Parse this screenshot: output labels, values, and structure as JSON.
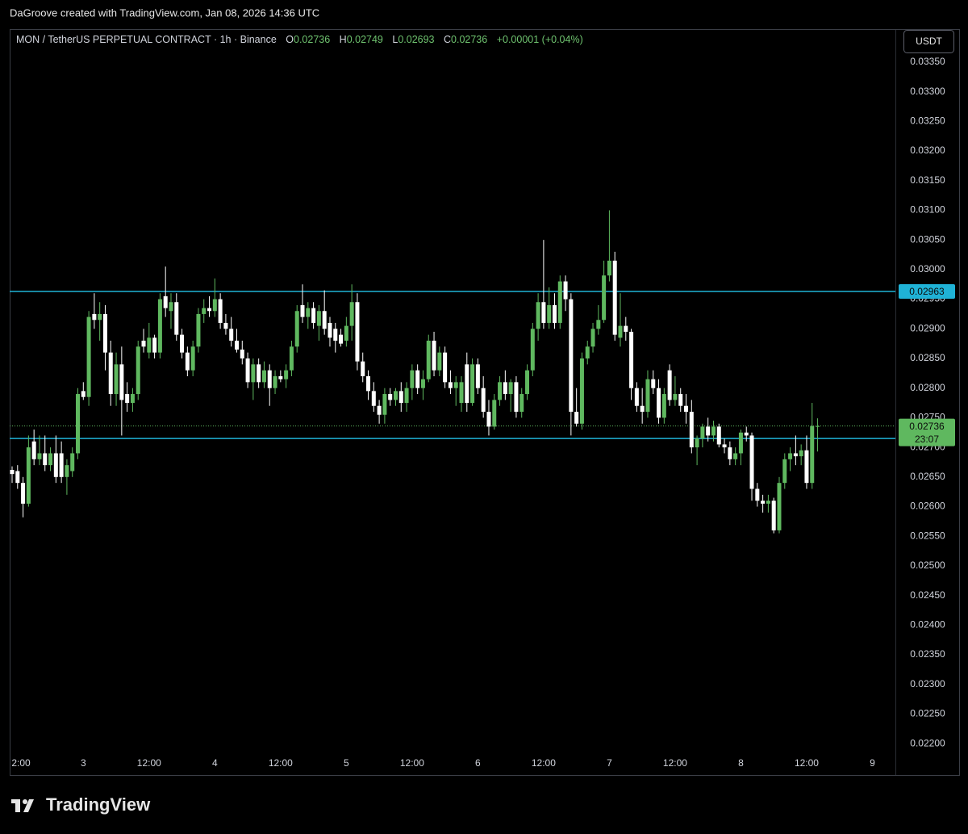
{
  "header": "DaGroove created with TradingView.com, Jan 08, 2026 14:36 UTC",
  "brand": "TradingView",
  "chart_data": {
    "type": "candlestick",
    "symbol": "MON / TetherUS PERPETUAL CONTRACT · 1h · Binance",
    "legend": {
      "open_label": "O",
      "open": 0.02736,
      "high_label": "H",
      "high": 0.02749,
      "low_label": "L",
      "low": 0.02693,
      "close_label": "C",
      "close": 0.02736,
      "change": "+0.00001 (+0.04%)"
    },
    "currency": "USDT",
    "up_color": "#5fb85f",
    "down_color": "#ffffff",
    "xlim": [
      -0.44,
      161.2
    ],
    "xticks": [
      {
        "value": 1,
        "label": "2:00"
      },
      {
        "value": 13,
        "label": "3"
      },
      {
        "value": 25,
        "label": "12:00"
      },
      {
        "value": 37,
        "label": "4"
      },
      {
        "value": 49,
        "label": "12:00"
      },
      {
        "value": 61,
        "label": "5"
      },
      {
        "value": 73,
        "label": "12:00"
      },
      {
        "value": 85,
        "label": "6"
      },
      {
        "value": 97,
        "label": "12:00"
      },
      {
        "value": 109,
        "label": "7"
      },
      {
        "value": 121,
        "label": "12:00"
      },
      {
        "value": 133,
        "label": "8"
      },
      {
        "value": 145,
        "label": "12:00"
      },
      {
        "value": 157,
        "label": "9"
      }
    ],
    "ylim": [
      0.02188,
      0.03403
    ],
    "yticks": [
      {
        "value": 0.022,
        "label": "0.02200"
      },
      {
        "value": 0.0225,
        "label": "0.02250"
      },
      {
        "value": 0.023,
        "label": "0.02300"
      },
      {
        "value": 0.0235,
        "label": "0.02350"
      },
      {
        "value": 0.024,
        "label": "0.02400"
      },
      {
        "value": 0.0245,
        "label": "0.02450"
      },
      {
        "value": 0.025,
        "label": "0.02500"
      },
      {
        "value": 0.0255,
        "label": "0.02550"
      },
      {
        "value": 0.026,
        "label": "0.02600"
      },
      {
        "value": 0.0265,
        "label": "0.02650"
      },
      {
        "value": 0.027,
        "label": "0.02700"
      },
      {
        "value": 0.0275,
        "label": "0.02750"
      },
      {
        "value": 0.028,
        "label": "0.02800"
      },
      {
        "value": 0.0285,
        "label": "0.02850"
      },
      {
        "value": 0.029,
        "label": "0.02900"
      },
      {
        "value": 0.0295,
        "label": "0.02950"
      },
      {
        "value": 0.03,
        "label": "0.03000"
      },
      {
        "value": 0.0305,
        "label": "0.03050"
      },
      {
        "value": 0.031,
        "label": "0.03100"
      },
      {
        "value": 0.0315,
        "label": "0.03150"
      },
      {
        "value": 0.032,
        "label": "0.03200"
      },
      {
        "value": 0.0325,
        "label": "0.03250"
      },
      {
        "value": 0.033,
        "label": "0.03300"
      },
      {
        "value": 0.0335,
        "label": "0.03350"
      }
    ],
    "levels": [
      {
        "value": 0.02963,
        "color": "#1fb2d6"
      },
      {
        "value": 0.02715,
        "color": "#1fb2d6"
      }
    ],
    "last_price": 0.02736,
    "countdown": "23:07",
    "open": [
      0.02662,
      0.0266,
      0.0264,
      0.02605,
      0.0271,
      0.0268,
      0.0269,
      0.0267,
      0.0269,
      0.0269,
      0.0265,
      0.0266,
      0.0269,
      0.02795,
      0.02785,
      0.02925,
      0.02915,
      0.02925,
      0.0286,
      0.0279,
      0.0284,
      0.0279,
      0.02775,
      0.0279,
      0.0288,
      0.0286,
      0.02885,
      0.0286,
      0.02955,
      0.0293,
      0.02945,
      0.0289,
      0.0286,
      0.0283,
      0.0287,
      0.02925,
      0.02935,
      0.0293,
      0.0295,
      0.0291,
      0.029,
      0.0288,
      0.02865,
      0.0285,
      0.0281,
      0.0284,
      0.0281,
      0.0283,
      0.028,
      0.0282,
      0.02815,
      0.0283,
      0.0287,
      0.0294,
      0.0292,
      0.02935,
      0.02905,
      0.0293,
      0.0291,
      0.029,
      0.0289,
      0.0288,
      0.02905,
      0.02945,
      0.02845,
      0.0282,
      0.02795,
      0.0277,
      0.02755,
      0.0279,
      0.0278,
      0.02795,
      0.02775,
      0.028,
      0.0283,
      0.028,
      0.02815,
      0.0288,
      0.0283,
      0.0286,
      0.0281,
      0.028,
      0.02775,
      0.0284,
      0.02775,
      0.0284,
      0.028,
      0.0276,
      0.02735,
      0.0278,
      0.0281,
      0.0279,
      0.0281,
      0.0276,
      0.0279,
      0.0283,
      0.029,
      0.02945,
      0.0291,
      0.0294,
      0.0291,
      0.0298,
      0.0295,
      0.0276,
      0.0274,
      0.0285,
      0.0287,
      0.029,
      0.02915,
      0.0299,
      0.03015,
      0.02885,
      0.02905,
      0.02895,
      0.028,
      0.0277,
      0.0276,
      0.02815,
      0.028,
      0.0275,
      0.0283,
      0.0278,
      0.0279,
      0.0277,
      0.0276,
      0.027,
      0.02715,
      0.02735,
      0.0272,
      0.02735,
      0.02705,
      0.027,
      0.0268,
      0.0269,
      0.02725,
      0.0272,
      0.0263,
      0.0261,
      0.02605,
      0.0261,
      0.0256,
      0.0264,
      0.0268,
      0.0269,
      0.02685,
      0.02695,
      0.0264,
      0.02736
    ],
    "high": [
      0.02668,
      0.0267,
      0.0265,
      0.0272,
      0.0273,
      0.0272,
      0.0272,
      0.027,
      0.0272,
      0.0271,
      0.0268,
      0.027,
      0.028,
      0.0281,
      0.0293,
      0.0296,
      0.02945,
      0.0294,
      0.0288,
      0.0286,
      0.0287,
      0.0281,
      0.028,
      0.0288,
      0.029,
      0.0291,
      0.0289,
      0.0296,
      0.03005,
      0.0296,
      0.0296,
      0.029,
      0.0287,
      0.0288,
      0.02935,
      0.0295,
      0.02955,
      0.02985,
      0.0296,
      0.02925,
      0.0292,
      0.029,
      0.0288,
      0.0286,
      0.0285,
      0.0285,
      0.02845,
      0.0284,
      0.0283,
      0.0283,
      0.0284,
      0.0288,
      0.0294,
      0.02975,
      0.02945,
      0.02945,
      0.0294,
      0.02965,
      0.0292,
      0.0291,
      0.029,
      0.0292,
      0.02975,
      0.0296,
      0.0286,
      0.0283,
      0.0281,
      0.0278,
      0.028,
      0.028,
      0.028,
      0.0281,
      0.0281,
      0.0284,
      0.0284,
      0.0283,
      0.0289,
      0.02895,
      0.0287,
      0.0287,
      0.0283,
      0.0282,
      0.0282,
      0.0286,
      0.0285,
      0.0285,
      0.0282,
      0.0278,
      0.0279,
      0.0282,
      0.0283,
      0.02815,
      0.0282,
      0.028,
      0.0284,
      0.0291,
      0.0296,
      0.0305,
      0.0297,
      0.0296,
      0.0299,
      0.0299,
      0.0296,
      0.028,
      0.0286,
      0.0288,
      0.0291,
      0.0294,
      0.03015,
      0.031,
      0.0303,
      0.0296,
      0.0292,
      0.029,
      0.0281,
      0.028,
      0.0283,
      0.0283,
      0.02815,
      0.028,
      0.0284,
      0.0282,
      0.028,
      0.0279,
      0.0278,
      0.0272,
      0.0274,
      0.0275,
      0.02745,
      0.0274,
      0.02715,
      0.0271,
      0.027,
      0.0273,
      0.02735,
      0.02725,
      0.0264,
      0.0262,
      0.0262,
      0.02615,
      0.0265,
      0.0269,
      0.027,
      0.0272,
      0.02705,
      0.0272,
      0.02775,
      0.02749
    ],
    "low": [
      0.0264,
      0.0263,
      0.02582,
      0.026,
      0.0267,
      0.0267,
      0.0266,
      0.0266,
      0.0264,
      0.0264,
      0.0262,
      0.0265,
      0.0268,
      0.0278,
      0.0277,
      0.029,
      0.0288,
      0.0283,
      0.0277,
      0.0277,
      0.0272,
      0.0276,
      0.0276,
      0.0278,
      0.0286,
      0.0285,
      0.0285,
      0.0285,
      0.0292,
      0.029,
      0.0288,
      0.0285,
      0.0282,
      0.0282,
      0.0286,
      0.0291,
      0.0292,
      0.0292,
      0.029,
      0.0289,
      0.0287,
      0.0286,
      0.0284,
      0.028,
      0.0278,
      0.028,
      0.028,
      0.0277,
      0.0279,
      0.0281,
      0.028,
      0.0282,
      0.0286,
      0.0291,
      0.029,
      0.029,
      0.0288,
      0.0289,
      0.0287,
      0.0286,
      0.0287,
      0.0287,
      0.0288,
      0.0283,
      0.0281,
      0.0278,
      0.0276,
      0.0274,
      0.0274,
      0.0277,
      0.0277,
      0.0276,
      0.0276,
      0.0278,
      0.0279,
      0.0278,
      0.0281,
      0.0282,
      0.0282,
      0.028,
      0.0279,
      0.0277,
      0.0276,
      0.0276,
      0.0277,
      0.0279,
      0.0275,
      0.0272,
      0.0273,
      0.0277,
      0.0278,
      0.0276,
      0.0275,
      0.0275,
      0.0278,
      0.0282,
      0.0288,
      0.029,
      0.029,
      0.029,
      0.029,
      0.0293,
      0.0272,
      0.02735,
      0.0273,
      0.0284,
      0.0286,
      0.0289,
      0.0291,
      0.0298,
      0.0288,
      0.0287,
      0.0288,
      0.0278,
      0.0276,
      0.0274,
      0.0275,
      0.0279,
      0.0274,
      0.0274,
      0.0277,
      0.0277,
      0.0276,
      0.0274,
      0.0269,
      0.0267,
      0.027,
      0.0271,
      0.0271,
      0.027,
      0.0269,
      0.0267,
      0.0267,
      0.0267,
      0.0271,
      0.0261,
      0.026,
      0.0259,
      0.0259,
      0.02555,
      0.02555,
      0.0263,
      0.0266,
      0.0267,
      0.0267,
      0.0263,
      0.0263,
      0.02693
    ],
    "close": [
      0.02655,
      0.0264,
      0.02605,
      0.027,
      0.0268,
      0.0269,
      0.0267,
      0.0269,
      0.0265,
      0.0265,
      0.0267,
      0.0269,
      0.0279,
      0.02785,
      0.0292,
      0.02915,
      0.02925,
      0.0286,
      0.0279,
      0.0284,
      0.0278,
      0.02775,
      0.0279,
      0.0287,
      0.0287,
      0.02885,
      0.0286,
      0.0295,
      0.02935,
      0.02945,
      0.0289,
      0.0286,
      0.0283,
      0.0287,
      0.02925,
      0.02935,
      0.0293,
      0.0295,
      0.0291,
      0.029,
      0.0288,
      0.02865,
      0.0285,
      0.0281,
      0.0284,
      0.0281,
      0.0283,
      0.028,
      0.0282,
      0.02815,
      0.0283,
      0.0287,
      0.0293,
      0.0292,
      0.02935,
      0.0291,
      0.0293,
      0.029,
      0.02885,
      0.0288,
      0.02875,
      0.02905,
      0.02945,
      0.02845,
      0.0282,
      0.02795,
      0.0277,
      0.02755,
      0.0279,
      0.0278,
      0.02795,
      0.02775,
      0.028,
      0.0283,
      0.028,
      0.02815,
      0.0288,
      0.0283,
      0.0286,
      0.0281,
      0.028,
      0.0281,
      0.0281,
      0.02775,
      0.0284,
      0.028,
      0.0276,
      0.02735,
      0.0278,
      0.0281,
      0.0279,
      0.0281,
      0.0276,
      0.0279,
      0.0283,
      0.029,
      0.02945,
      0.0291,
      0.0294,
      0.0291,
      0.0298,
      0.0295,
      0.0276,
      0.0274,
      0.0285,
      0.0287,
      0.029,
      0.02915,
      0.0299,
      0.03015,
      0.0289,
      0.02905,
      0.02895,
      0.028,
      0.0277,
      0.0276,
      0.02815,
      0.028,
      0.0275,
      0.0279,
      0.0278,
      0.0279,
      0.0277,
      0.0276,
      0.027,
      0.02715,
      0.02735,
      0.0272,
      0.02735,
      0.02705,
      0.027,
      0.0268,
      0.0269,
      0.02725,
      0.0272,
      0.0263,
      0.0261,
      0.02605,
      0.0261,
      0.0256,
      0.0264,
      0.0268,
      0.0269,
      0.02685,
      0.02695,
      0.0264,
      0.02736,
      0.02736
    ]
  }
}
